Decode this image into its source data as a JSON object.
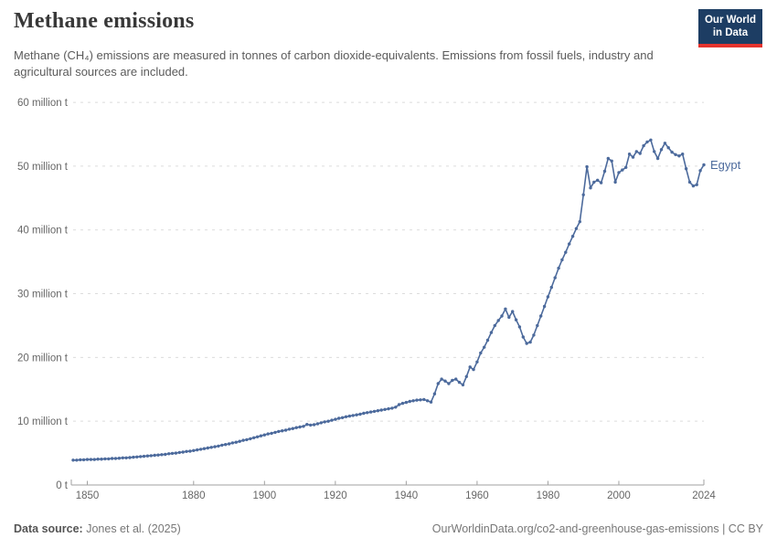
{
  "header": {
    "title": "Methane emissions",
    "subtitle": "Methane (CH₄) emissions are measured in tonnes of carbon dioxide-equivalents. Emissions from fossil fuels, industry and agricultural sources are included.",
    "logo": {
      "line1": "Our World",
      "line2": "in Data"
    }
  },
  "chart_data": {
    "type": "line",
    "title": "Methane emissions",
    "xlabel": "",
    "ylabel": "",
    "unit": "tonnes of carbon dioxide-equivalents",
    "grid": "horizontal-dashed",
    "legend_position": "end-of-line-label",
    "xlim": [
      1846,
      2024
    ],
    "ylim": [
      0,
      60
    ],
    "x_ticks": [
      1850,
      1880,
      1900,
      1920,
      1940,
      1960,
      1980,
      2000,
      2024
    ],
    "y_ticks": [
      {
        "value": 0,
        "label": "0 t"
      },
      {
        "value": 10,
        "label": "10 million t"
      },
      {
        "value": 20,
        "label": "20 million t"
      },
      {
        "value": 30,
        "label": "30 million t"
      },
      {
        "value": 40,
        "label": "40 million t"
      },
      {
        "value": 50,
        "label": "50 million t"
      },
      {
        "value": 60,
        "label": "60 million t"
      }
    ],
    "series": [
      {
        "name": "Egypt",
        "start_year": 1846,
        "end_year": 2024,
        "values_million_t": [
          3.9,
          3.9,
          3.95,
          3.95,
          4.0,
          4.0,
          4.0,
          4.05,
          4.05,
          4.1,
          4.1,
          4.15,
          4.15,
          4.2,
          4.25,
          4.25,
          4.3,
          4.35,
          4.4,
          4.45,
          4.5,
          4.55,
          4.6,
          4.65,
          4.7,
          4.75,
          4.8,
          4.9,
          4.95,
          5.0,
          5.1,
          5.15,
          5.25,
          5.3,
          5.4,
          5.5,
          5.6,
          5.7,
          5.8,
          5.9,
          6.0,
          6.1,
          6.25,
          6.35,
          6.45,
          6.6,
          6.7,
          6.85,
          7.0,
          7.1,
          7.25,
          7.4,
          7.55,
          7.7,
          7.85,
          8.0,
          8.1,
          8.25,
          8.4,
          8.5,
          8.6,
          8.75,
          8.85,
          9.0,
          9.1,
          9.2,
          9.5,
          9.4,
          9.45,
          9.6,
          9.75,
          9.9,
          10.0,
          10.15,
          10.3,
          10.45,
          10.55,
          10.7,
          10.8,
          10.9,
          11.0,
          11.1,
          11.25,
          11.35,
          11.45,
          11.55,
          11.65,
          11.75,
          11.85,
          11.95,
          12.05,
          12.2,
          12.6,
          12.8,
          12.95,
          13.1,
          13.2,
          13.3,
          13.35,
          13.4,
          13.2,
          13.0,
          14.3,
          15.9,
          16.6,
          16.3,
          15.9,
          16.4,
          16.6,
          16.1,
          15.7,
          17.0,
          18.5,
          18.1,
          19.3,
          20.7,
          21.6,
          22.7,
          23.9,
          25.0,
          25.8,
          26.5,
          27.6,
          26.3,
          27.2,
          25.9,
          24.8,
          23.2,
          22.2,
          22.4,
          23.5,
          25.0,
          26.5,
          28.0,
          29.5,
          31.0,
          32.5,
          34.0,
          35.3,
          36.5,
          37.8,
          39.0,
          40.2,
          41.3,
          45.5,
          49.9,
          46.6,
          47.5,
          47.8,
          47.4,
          49.2,
          51.2,
          50.8,
          47.5,
          49.0,
          49.4,
          49.8,
          51.9,
          51.4,
          52.3,
          52.0,
          53.2,
          53.8,
          54.1,
          52.3,
          51.2,
          52.6,
          53.6,
          52.9,
          52.2,
          51.8,
          51.6,
          51.9,
          49.6,
          47.5,
          46.9,
          47.1,
          49.3,
          50.2
        ]
      }
    ]
  },
  "entity_label": "Egypt",
  "footer": {
    "source_label": "Data source:",
    "source_value": "Jones et al. (2025)",
    "link": "OurWorldinData.org/co2-and-greenhouse-gas-emissions | CC BY"
  },
  "colors": {
    "line": "#4C6A9C",
    "entity_label": "#4C6A9C",
    "logo_background": "#1d3d63",
    "logo_accent": "#e5332d",
    "gridline": "#dcdcdc",
    "axis": "#a1a1a1",
    "tick_text": "#666666"
  }
}
